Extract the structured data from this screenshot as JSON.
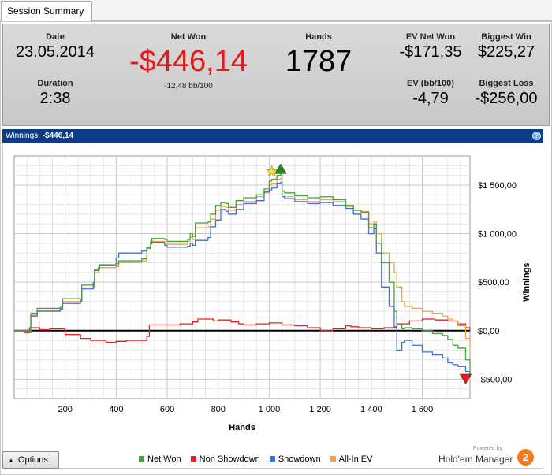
{
  "tab": {
    "label": "Session Summary"
  },
  "summary": {
    "date": {
      "label": "Date",
      "value": "23.05.2014"
    },
    "duration": {
      "label": "Duration",
      "value": "2:38"
    },
    "net_won": {
      "label": "Net Won",
      "value": "-$446,14",
      "sub": "-12,48 bb/100"
    },
    "hands": {
      "label": "Hands",
      "value": "1787"
    },
    "ev_net_won": {
      "label": "EV Net Won",
      "value": "-$171,35"
    },
    "ev_bb": {
      "label": "EV (bb/100)",
      "value": "-4,79"
    },
    "biggest_win": {
      "label": "Biggest Win",
      "value": "$225,27"
    },
    "biggest_loss": {
      "label": "Biggest Loss",
      "value": "-$256,00"
    }
  },
  "chart_header": {
    "label": "Winnings:",
    "value": "-$446,14"
  },
  "chart_data": {
    "type": "line",
    "xlabel": "Hands",
    "ylabel": "Winnings",
    "xlim": [
      0,
      1787
    ],
    "ylim": [
      -700,
      1800
    ],
    "x_ticks": [
      200,
      400,
      600,
      800,
      1000,
      1200,
      1400,
      1600
    ],
    "x_tick_labels": [
      "200",
      "400",
      "600",
      "800",
      "1 000",
      "1 200",
      "1 400",
      "1 600"
    ],
    "y_ticks": [
      -500,
      0,
      500,
      1000,
      1500
    ],
    "y_tick_labels": [
      "-$500,00",
      "$0,00",
      "$500,00",
      "$1 000,00",
      "$1 500,00"
    ],
    "grid": true,
    "series": [
      {
        "name": "Net Won",
        "color": "#3fa535",
        "x": [
          0,
          60,
          65,
          90,
          180,
          190,
          260,
          265,
          310,
          315,
          330,
          335,
          400,
          410,
          500,
          520,
          535,
          540,
          590,
          600,
          680,
          690,
          700,
          710,
          760,
          770,
          790,
          810,
          830,
          840,
          870,
          900,
          950,
          980,
          1000,
          1010,
          1030,
          1045,
          1050,
          1060,
          1100,
          1150,
          1200,
          1250,
          1300,
          1330,
          1360,
          1390,
          1410,
          1420,
          1440,
          1470,
          1490,
          1500,
          1520,
          1530,
          1560,
          1600,
          1640,
          1680,
          1700,
          1720,
          1740,
          1770,
          1787
        ],
        "y": [
          0,
          -20,
          180,
          230,
          240,
          330,
          320,
          470,
          460,
          630,
          650,
          680,
          690,
          720,
          740,
          850,
          920,
          950,
          940,
          920,
          940,
          1000,
          970,
          1110,
          1120,
          1200,
          1290,
          1320,
          1310,
          1270,
          1340,
          1370,
          1400,
          1460,
          1540,
          1560,
          1600,
          1610,
          1440,
          1420,
          1390,
          1370,
          1380,
          1350,
          1290,
          1240,
          1220,
          1060,
          1100,
          900,
          700,
          500,
          200,
          60,
          20,
          30,
          20,
          0,
          -30,
          -50,
          -90,
          -150,
          -180,
          -300,
          -446
        ]
      },
      {
        "name": "Non Showdown",
        "color": "#e22222",
        "x": [
          0,
          40,
          60,
          100,
          140,
          200,
          260,
          300,
          360,
          400,
          440,
          520,
          530,
          600,
          650,
          700,
          720,
          780,
          800,
          850,
          880,
          900,
          950,
          1000,
          1050,
          1100,
          1150,
          1200,
          1250,
          1300,
          1320,
          1350,
          1400,
          1450,
          1500,
          1550,
          1600,
          1650,
          1700,
          1740,
          1770,
          1787
        ],
        "y": [
          0,
          -20,
          30,
          10,
          20,
          -40,
          -80,
          -100,
          -120,
          -110,
          -100,
          -60,
          60,
          60,
          70,
          90,
          120,
          100,
          110,
          90,
          70,
          60,
          70,
          80,
          60,
          50,
          30,
          0,
          20,
          50,
          40,
          30,
          20,
          30,
          70,
          100,
          120,
          110,
          100,
          70,
          30,
          0
        ]
      },
      {
        "name": "Showdown",
        "color": "#3c6fe0",
        "x": [
          0,
          60,
          65,
          90,
          180,
          190,
          260,
          265,
          310,
          315,
          330,
          335,
          400,
          410,
          500,
          520,
          535,
          540,
          590,
          600,
          680,
          690,
          700,
          710,
          760,
          770,
          790,
          810,
          830,
          840,
          870,
          900,
          950,
          980,
          1000,
          1010,
          1030,
          1045,
          1050,
          1060,
          1100,
          1150,
          1200,
          1250,
          1300,
          1330,
          1360,
          1390,
          1410,
          1420,
          1440,
          1470,
          1490,
          1500,
          1520,
          1530,
          1560,
          1600,
          1640,
          1680,
          1700,
          1720,
          1740,
          1770,
          1787
        ],
        "y": [
          0,
          0,
          150,
          200,
          220,
          280,
          300,
          430,
          500,
          620,
          640,
          670,
          750,
          800,
          820,
          860,
          900,
          910,
          880,
          860,
          870,
          900,
          880,
          930,
          960,
          1070,
          1140,
          1250,
          1230,
          1200,
          1250,
          1310,
          1340,
          1430,
          1450,
          1470,
          1520,
          1530,
          1380,
          1360,
          1330,
          1310,
          1320,
          1290,
          1260,
          1200,
          1150,
          1000,
          1050,
          800,
          450,
          250,
          40,
          -200,
          -120,
          -100,
          -150,
          -220,
          -250,
          -280,
          -330,
          -350,
          -370,
          -420,
          -480
        ]
      },
      {
        "name": "All-In EV",
        "color": "#f5a243",
        "x": [
          0,
          60,
          65,
          90,
          180,
          190,
          260,
          265,
          310,
          315,
          330,
          335,
          400,
          410,
          500,
          520,
          535,
          540,
          590,
          600,
          680,
          690,
          700,
          710,
          760,
          770,
          790,
          810,
          830,
          840,
          870,
          900,
          950,
          980,
          1000,
          1010,
          1030,
          1045,
          1050,
          1060,
          1100,
          1150,
          1200,
          1250,
          1300,
          1330,
          1360,
          1390,
          1410,
          1420,
          1440,
          1470,
          1490,
          1500,
          1520,
          1530,
          1560,
          1600,
          1640,
          1680,
          1700,
          1720,
          1740,
          1770,
          1787
        ],
        "y": [
          0,
          -10,
          160,
          210,
          230,
          300,
          310,
          440,
          450,
          600,
          620,
          650,
          660,
          700,
          720,
          830,
          890,
          920,
          900,
          890,
          920,
          960,
          940,
          1060,
          1070,
          1150,
          1240,
          1280,
          1270,
          1240,
          1300,
          1330,
          1380,
          1420,
          1500,
          1520,
          1560,
          1570,
          1400,
          1380,
          1350,
          1330,
          1350,
          1330,
          1280,
          1240,
          1230,
          1100,
          1130,
          1000,
          800,
          700,
          600,
          450,
          300,
          250,
          230,
          200,
          180,
          150,
          120,
          100,
          50,
          -80,
          -171
        ]
      }
    ],
    "markers": [
      {
        "kind": "star",
        "x": 1010,
        "y": 1640,
        "color": "#f3e83a"
      },
      {
        "kind": "up-triangle",
        "x": 1045,
        "y": 1660,
        "color": "#2a8a2a"
      },
      {
        "kind": "down-triangle",
        "x": 1770,
        "y": -490,
        "color": "#e01c1c"
      }
    ]
  },
  "footer": {
    "options_label": "Options",
    "legend": [
      {
        "label": "Net Won",
        "color": "#3fa535"
      },
      {
        "label": "Non Showdown",
        "color": "#e22222"
      },
      {
        "label": "Showdown",
        "color": "#3c6fe0"
      },
      {
        "label": "All-In EV",
        "color": "#f5a243"
      }
    ],
    "powered_by": "Powered by",
    "brand_name": "Hold'em Manager",
    "brand_badge": "2"
  }
}
